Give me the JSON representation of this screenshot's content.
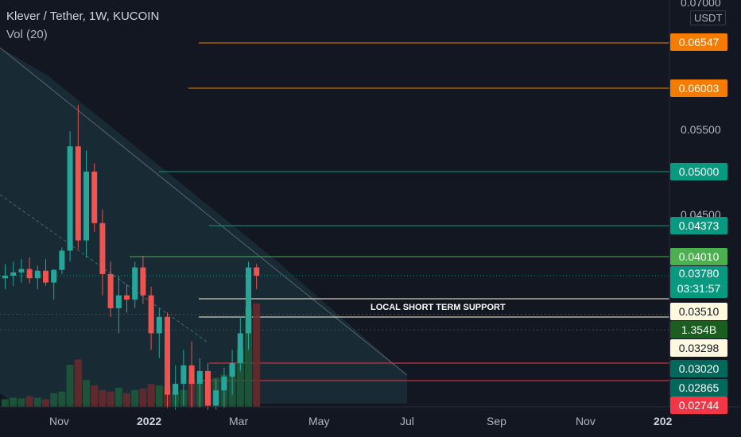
{
  "header": {
    "symbol_title": "Klever / Tether, 1W, KUCOIN",
    "indicator": "Vol (20)"
  },
  "price_axis": {
    "unit": "USDT",
    "ticks": [
      "0.07000",
      "0.05500",
      "0.04500"
    ]
  },
  "time_axis": {
    "ticks": [
      "Nov",
      "2022",
      "Mar",
      "May",
      "Jul",
      "Sep",
      "Nov",
      "202"
    ]
  },
  "price_badges": [
    {
      "label": "0.06547",
      "price": 0.06547,
      "color": "#f57c00"
    },
    {
      "label": "0.06003",
      "price": 0.06003,
      "color": "#f57c00"
    },
    {
      "label": "0.05000",
      "price": 0.05,
      "color": "#089981"
    },
    {
      "label": "0.04373",
      "price": 0.04373,
      "color": "#089981"
    },
    {
      "label": "0.04010",
      "price": 0.0401,
      "color": "#4caf50"
    },
    {
      "label": "0.03780",
      "sub": "03:31:57",
      "price": 0.0378,
      "color": "#089981"
    },
    {
      "label": "0.03510",
      "price": 0.0351,
      "color": "#fff9e0"
    },
    {
      "label": "1.354B",
      "color": "#1b5e20"
    },
    {
      "label": "0.03298",
      "price": 0.03298,
      "color": "#fff9e0"
    },
    {
      "label": "0.03020",
      "price": 0.0302,
      "color": "#00695c"
    },
    {
      "label": "0.02865",
      "price": 0.02865,
      "color": "#00695c"
    },
    {
      "label": "0.02744",
      "price": 0.02744,
      "color": "#f23645"
    }
  ],
  "annotation": "LOCAL SHORT TERM SUPPORT",
  "chart_data": {
    "type": "candlestick",
    "price_unit": "USDT",
    "timeframe": "1W",
    "candles": [
      {
        "o": 0.0375,
        "h": 0.0392,
        "l": 0.0362,
        "c": 0.0378
      },
      {
        "o": 0.0378,
        "h": 0.0395,
        "l": 0.0366,
        "c": 0.0382
      },
      {
        "o": 0.0382,
        "h": 0.0398,
        "l": 0.037,
        "c": 0.0386
      },
      {
        "o": 0.0386,
        "h": 0.04,
        "l": 0.0369,
        "c": 0.0375
      },
      {
        "o": 0.0375,
        "h": 0.039,
        "l": 0.0362,
        "c": 0.0384
      },
      {
        "o": 0.0384,
        "h": 0.0398,
        "l": 0.0366,
        "c": 0.037
      },
      {
        "o": 0.037,
        "h": 0.0386,
        "l": 0.035,
        "c": 0.0385
      },
      {
        "o": 0.0385,
        "h": 0.0412,
        "l": 0.038,
        "c": 0.0408
      },
      {
        "o": 0.0408,
        "h": 0.0548,
        "l": 0.0395,
        "c": 0.053
      },
      {
        "o": 0.053,
        "h": 0.058,
        "l": 0.041,
        "c": 0.042
      },
      {
        "o": 0.042,
        "h": 0.0525,
        "l": 0.04,
        "c": 0.05
      },
      {
        "o": 0.05,
        "h": 0.051,
        "l": 0.043,
        "c": 0.044
      },
      {
        "o": 0.044,
        "h": 0.0455,
        "l": 0.0355,
        "c": 0.038
      },
      {
        "o": 0.038,
        "h": 0.0395,
        "l": 0.033,
        "c": 0.034
      },
      {
        "o": 0.034,
        "h": 0.0378,
        "l": 0.032,
        "c": 0.0355
      },
      {
        "o": 0.0355,
        "h": 0.0368,
        "l": 0.0335,
        "c": 0.035
      },
      {
        "o": 0.035,
        "h": 0.0395,
        "l": 0.034,
        "c": 0.0388
      },
      {
        "o": 0.0388,
        "h": 0.0402,
        "l": 0.0345,
        "c": 0.0355
      },
      {
        "o": 0.0355,
        "h": 0.0365,
        "l": 0.031,
        "c": 0.032
      },
      {
        "o": 0.032,
        "h": 0.034,
        "l": 0.0305,
        "c": 0.033
      },
      {
        "o": 0.033,
        "h": 0.0335,
        "l": 0.027,
        "c": 0.028
      },
      {
        "o": 0.028,
        "h": 0.03,
        "l": 0.0265,
        "c": 0.0285
      },
      {
        "o": 0.0285,
        "h": 0.031,
        "l": 0.0275,
        "c": 0.03
      },
      {
        "o": 0.03,
        "h": 0.0315,
        "l": 0.027,
        "c": 0.0285
      },
      {
        "o": 0.0285,
        "h": 0.0305,
        "l": 0.0272,
        "c": 0.0295
      },
      {
        "o": 0.0295,
        "h": 0.0302,
        "l": 0.0265,
        "c": 0.0275
      },
      {
        "o": 0.0275,
        "h": 0.0288,
        "l": 0.0266,
        "c": 0.0282
      },
      {
        "o": 0.0282,
        "h": 0.0298,
        "l": 0.027,
        "c": 0.029
      },
      {
        "o": 0.029,
        "h": 0.031,
        "l": 0.028,
        "c": 0.0302
      },
      {
        "o": 0.0302,
        "h": 0.033,
        "l": 0.0295,
        "c": 0.032
      },
      {
        "o": 0.032,
        "h": 0.0395,
        "l": 0.031,
        "c": 0.0388
      },
      {
        "o": 0.0388,
        "h": 0.0392,
        "l": 0.0362,
        "c": 0.0378
      }
    ],
    "volume": [
      0.1,
      0.12,
      0.11,
      0.14,
      0.12,
      0.1,
      0.18,
      0.2,
      0.55,
      0.62,
      0.35,
      0.28,
      0.22,
      0.2,
      0.25,
      0.18,
      0.22,
      0.24,
      0.3,
      0.28,
      0.26,
      0.2,
      0.22,
      0.35,
      0.3,
      0.32,
      0.38,
      0.42,
      0.55,
      0.75,
      1.3,
      1.354
    ],
    "volume_unit": "B",
    "horizontal_levels": [
      0.06547,
      0.06003,
      0.05,
      0.04373,
      0.0401,
      0.0351,
      0.03298,
      0.0302,
      0.02865,
      0.02744
    ],
    "current_price": 0.0378
  }
}
